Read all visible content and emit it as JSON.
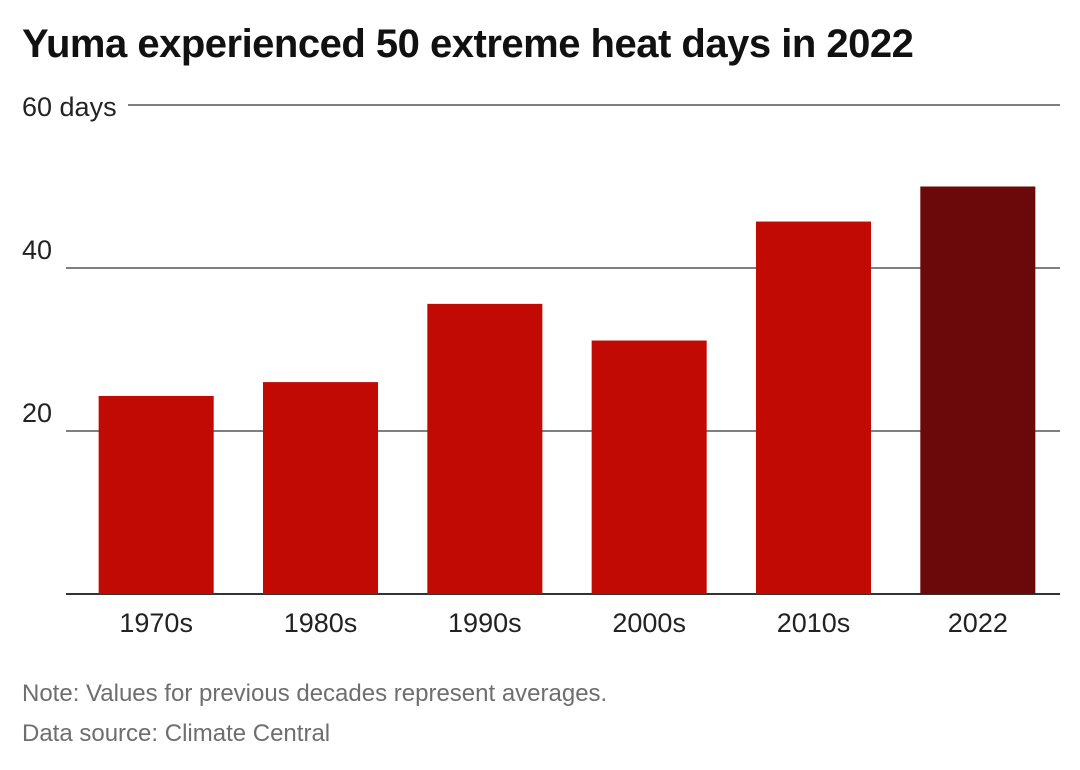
{
  "chart_data": {
    "type": "bar",
    "title": "Yuma experienced 50 extreme heat days in 2022",
    "categories": [
      "1970s",
      "1980s",
      "1990s",
      "2000s",
      "2010s",
      "2022"
    ],
    "values": [
      24.3,
      26.0,
      35.6,
      31.1,
      45.7,
      50
    ],
    "ylim": [
      0,
      60
    ],
    "yticks": [
      20,
      40,
      60
    ],
    "ytick_labels": [
      "20",
      "40",
      "60 days"
    ],
    "grid": true,
    "colors": {
      "bar": "#c20a05",
      "highlight": "#6b0809",
      "grid": "#555555",
      "baseline": "#333333"
    },
    "highlight_category": "2022"
  },
  "footer": {
    "note": "Note: Values for previous decades represent averages.",
    "source": "Data source: Climate Central"
  }
}
